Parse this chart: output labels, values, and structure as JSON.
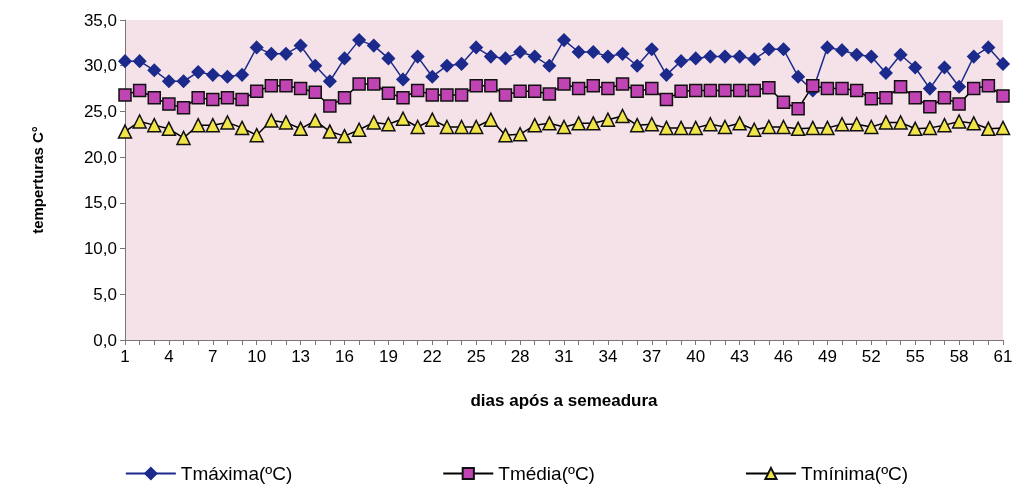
{
  "chart_data": {
    "type": "line",
    "xlabel": "dias após a semeadura",
    "ylabel": "temperturas C°",
    "categories": [
      "1",
      null,
      null,
      "4",
      null,
      null,
      "7",
      null,
      null,
      "10",
      null,
      null,
      "13",
      null,
      null,
      "16",
      null,
      null,
      "19",
      null,
      null,
      "22",
      null,
      null,
      "25",
      null,
      null,
      "28",
      null,
      null,
      "31",
      null,
      null,
      "34",
      null,
      null,
      "37",
      null,
      null,
      "40",
      null,
      null,
      "43",
      null,
      null,
      "46",
      null,
      null,
      "49",
      null,
      null,
      "52",
      null,
      null,
      "55",
      null,
      null,
      "58",
      null,
      null,
      "61"
    ],
    "ylim": [
      0,
      35
    ],
    "yticks": [
      {
        "value": 0,
        "label": "0,0"
      },
      {
        "value": 5,
        "label": "5,0"
      },
      {
        "value": 10,
        "label": "10,0"
      },
      {
        "value": 15,
        "label": "15,0"
      },
      {
        "value": 20,
        "label": "20,0"
      },
      {
        "value": 25,
        "label": "25,0"
      },
      {
        "value": 30,
        "label": "30,0"
      },
      {
        "value": 35,
        "label": "35,0"
      }
    ],
    "grid": false,
    "legend": "bottom",
    "line_style": "solid",
    "series": [
      {
        "name": "Tmáxima(ºC)",
        "color": "#1c2a8c",
        "marker": "diamond",
        "values": [
          30.5,
          30.5,
          29.5,
          28.3,
          28.3,
          29.3,
          29.0,
          28.8,
          29.0,
          32.0,
          31.3,
          31.3,
          32.2,
          30.0,
          28.3,
          30.8,
          32.8,
          32.2,
          30.8,
          28.5,
          31.0,
          28.8,
          30.0,
          30.2,
          32.0,
          31.0,
          30.8,
          31.5,
          31.0,
          30.0,
          32.8,
          31.5,
          31.5,
          31.0,
          31.3,
          30.0,
          31.8,
          29.0,
          30.5,
          30.8,
          31.0,
          31.0,
          31.0,
          30.7,
          31.8,
          31.8,
          28.8,
          27.3,
          32.0,
          31.7,
          31.2,
          31.0,
          29.2,
          31.2,
          29.8,
          27.5,
          29.8,
          27.7,
          31.0,
          32.0,
          30.2
        ]
      },
      {
        "name": "Tmédia(ºC)",
        "color": "#c044b4",
        "marker": "square",
        "values": [
          26.8,
          27.3,
          26.5,
          25.8,
          25.4,
          26.5,
          26.3,
          26.5,
          26.3,
          27.2,
          27.8,
          27.8,
          27.5,
          27.1,
          25.6,
          26.5,
          28.0,
          28.0,
          27.0,
          26.5,
          27.3,
          26.8,
          26.8,
          26.8,
          27.8,
          27.8,
          26.8,
          27.2,
          27.2,
          26.9,
          28.0,
          27.5,
          27.8,
          27.5,
          28.0,
          27.2,
          27.5,
          26.3,
          27.2,
          27.3,
          27.3,
          27.3,
          27.3,
          27.3,
          27.6,
          26.0,
          25.3,
          27.8,
          27.5,
          27.5,
          27.3,
          26.4,
          26.5,
          27.7,
          26.5,
          25.5,
          26.5,
          25.8,
          27.5,
          27.8,
          26.7
        ]
      },
      {
        "name": "Tmínima(ºC)",
        "color": "#f0e448",
        "marker": "triangle",
        "values": [
          22.8,
          23.9,
          23.5,
          23.1,
          22.1,
          23.5,
          23.5,
          23.8,
          23.2,
          22.4,
          24.0,
          23.8,
          23.1,
          24.0,
          22.8,
          22.3,
          23.0,
          23.8,
          23.6,
          24.2,
          23.3,
          24.1,
          23.3,
          23.3,
          23.3,
          24.1,
          22.4,
          22.5,
          23.5,
          23.7,
          23.3,
          23.7,
          23.7,
          24.1,
          24.5,
          23.5,
          23.6,
          23.2,
          23.2,
          23.2,
          23.6,
          23.3,
          23.7,
          23.0,
          23.3,
          23.3,
          23.1,
          23.2,
          23.2,
          23.6,
          23.6,
          23.3,
          23.8,
          23.8,
          23.1,
          23.2,
          23.5,
          23.9,
          23.7,
          23.1,
          23.2
        ]
      }
    ]
  }
}
